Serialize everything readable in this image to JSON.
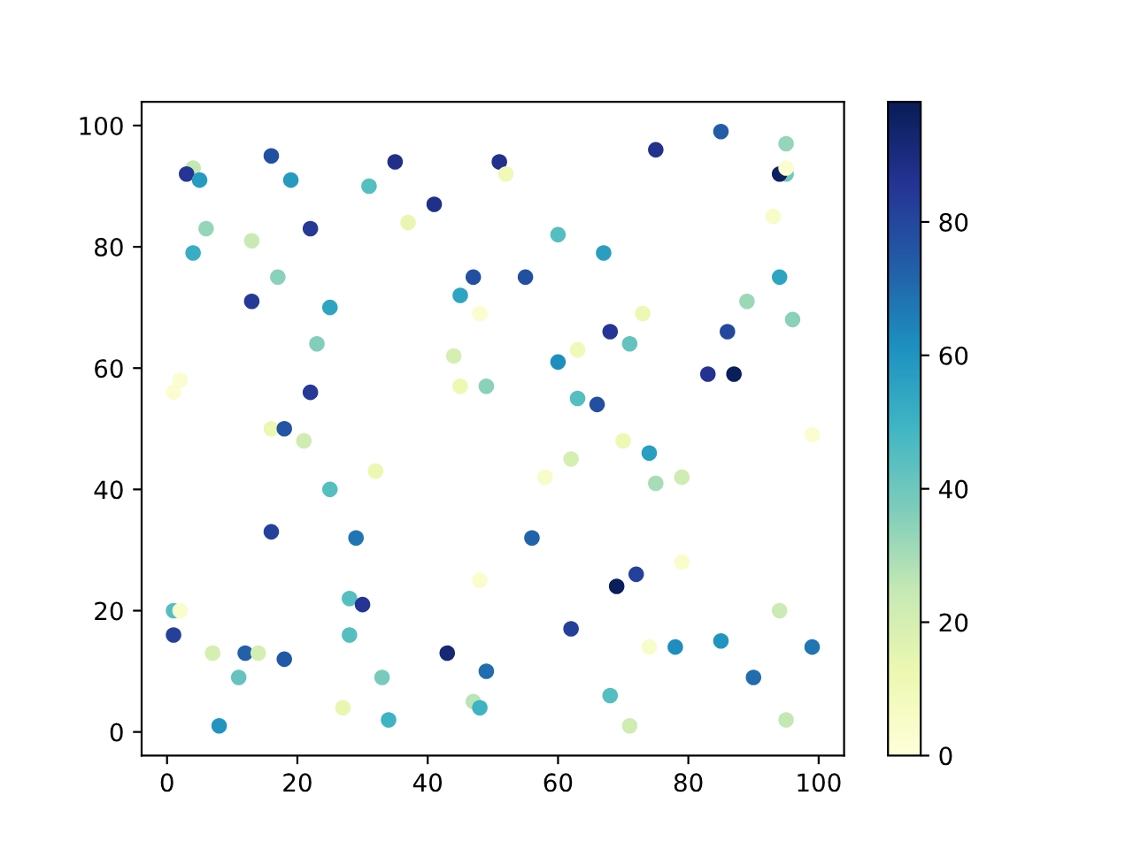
{
  "chart_data": {
    "type": "scatter",
    "x": [
      4,
      3,
      5,
      16,
      19,
      31,
      35,
      41,
      37,
      6,
      13,
      22,
      4,
      17,
      47,
      45,
      48,
      13,
      25,
      23,
      44,
      45,
      49,
      2,
      1,
      22,
      16,
      18,
      51,
      52,
      75,
      85,
      95,
      95,
      94,
      95,
      93,
      60,
      67,
      55,
      94,
      89,
      96,
      73,
      68,
      71,
      86,
      63,
      60,
      83,
      87,
      63,
      66,
      99,
      70,
      21,
      32,
      25,
      16,
      29,
      48,
      1,
      2,
      28,
      30,
      1,
      28,
      7,
      12,
      14,
      18,
      43,
      11,
      33,
      49,
      8,
      27,
      34,
      47,
      48,
      62,
      58,
      74,
      75,
      79,
      56,
      72,
      69,
      79,
      94,
      62,
      74,
      78,
      85,
      99,
      90,
      68,
      71,
      95
    ],
    "values": [
      93,
      92,
      91,
      95,
      91,
      90,
      94,
      87,
      84,
      83,
      81,
      83,
      79,
      75,
      75,
      72,
      69,
      71,
      70,
      64,
      62,
      57,
      57,
      58,
      56,
      56,
      50,
      50,
      94,
      92,
      96,
      99,
      97,
      92,
      92,
      93,
      85,
      82,
      79,
      75,
      75,
      71,
      68,
      69,
      66,
      64,
      66,
      63,
      61,
      59,
      59,
      55,
      54,
      49,
      48,
      48,
      43,
      40,
      33,
      32,
      25,
      20,
      20,
      22,
      21,
      16,
      16,
      13,
      13,
      13,
      12,
      13,
      9,
      9,
      10,
      1,
      4,
      2,
      5,
      4,
      45,
      42,
      46,
      41,
      42,
      32,
      26,
      24,
      28,
      20,
      17,
      14,
      14,
      15,
      14,
      9,
      6,
      1,
      2
    ],
    "cvalues": [
      25,
      85,
      58,
      78,
      58,
      45,
      88,
      88,
      14,
      33,
      24,
      84,
      52,
      35,
      78,
      55,
      3,
      84,
      55,
      36,
      20,
      12,
      35,
      3,
      3,
      84,
      13,
      76,
      87,
      10,
      87,
      74,
      33,
      40,
      96,
      3,
      5,
      45,
      57,
      78,
      55,
      32,
      35,
      12,
      85,
      42,
      80,
      10,
      62,
      86,
      97,
      45,
      78,
      3,
      12,
      22,
      13,
      45,
      82,
      68,
      4,
      45,
      4,
      45,
      85,
      82,
      45,
      20,
      73,
      20,
      75,
      92,
      42,
      38,
      70,
      60,
      14,
      50,
      27,
      50,
      20,
      5,
      57,
      30,
      22,
      72,
      82,
      97,
      4,
      23,
      82,
      5,
      62,
      60,
      68,
      70,
      45,
      22,
      25
    ],
    "clim": [
      0,
      98
    ],
    "cticks": [
      0,
      20,
      40,
      60,
      80
    ],
    "xlim": [
      -3.9,
      103.9
    ],
    "ylim": [
      -3.9,
      103.9
    ],
    "xticks": [
      0,
      20,
      40,
      60,
      80,
      100
    ],
    "yticks": [
      0,
      20,
      40,
      60,
      80,
      100
    ],
    "marker": "circle"
  }
}
